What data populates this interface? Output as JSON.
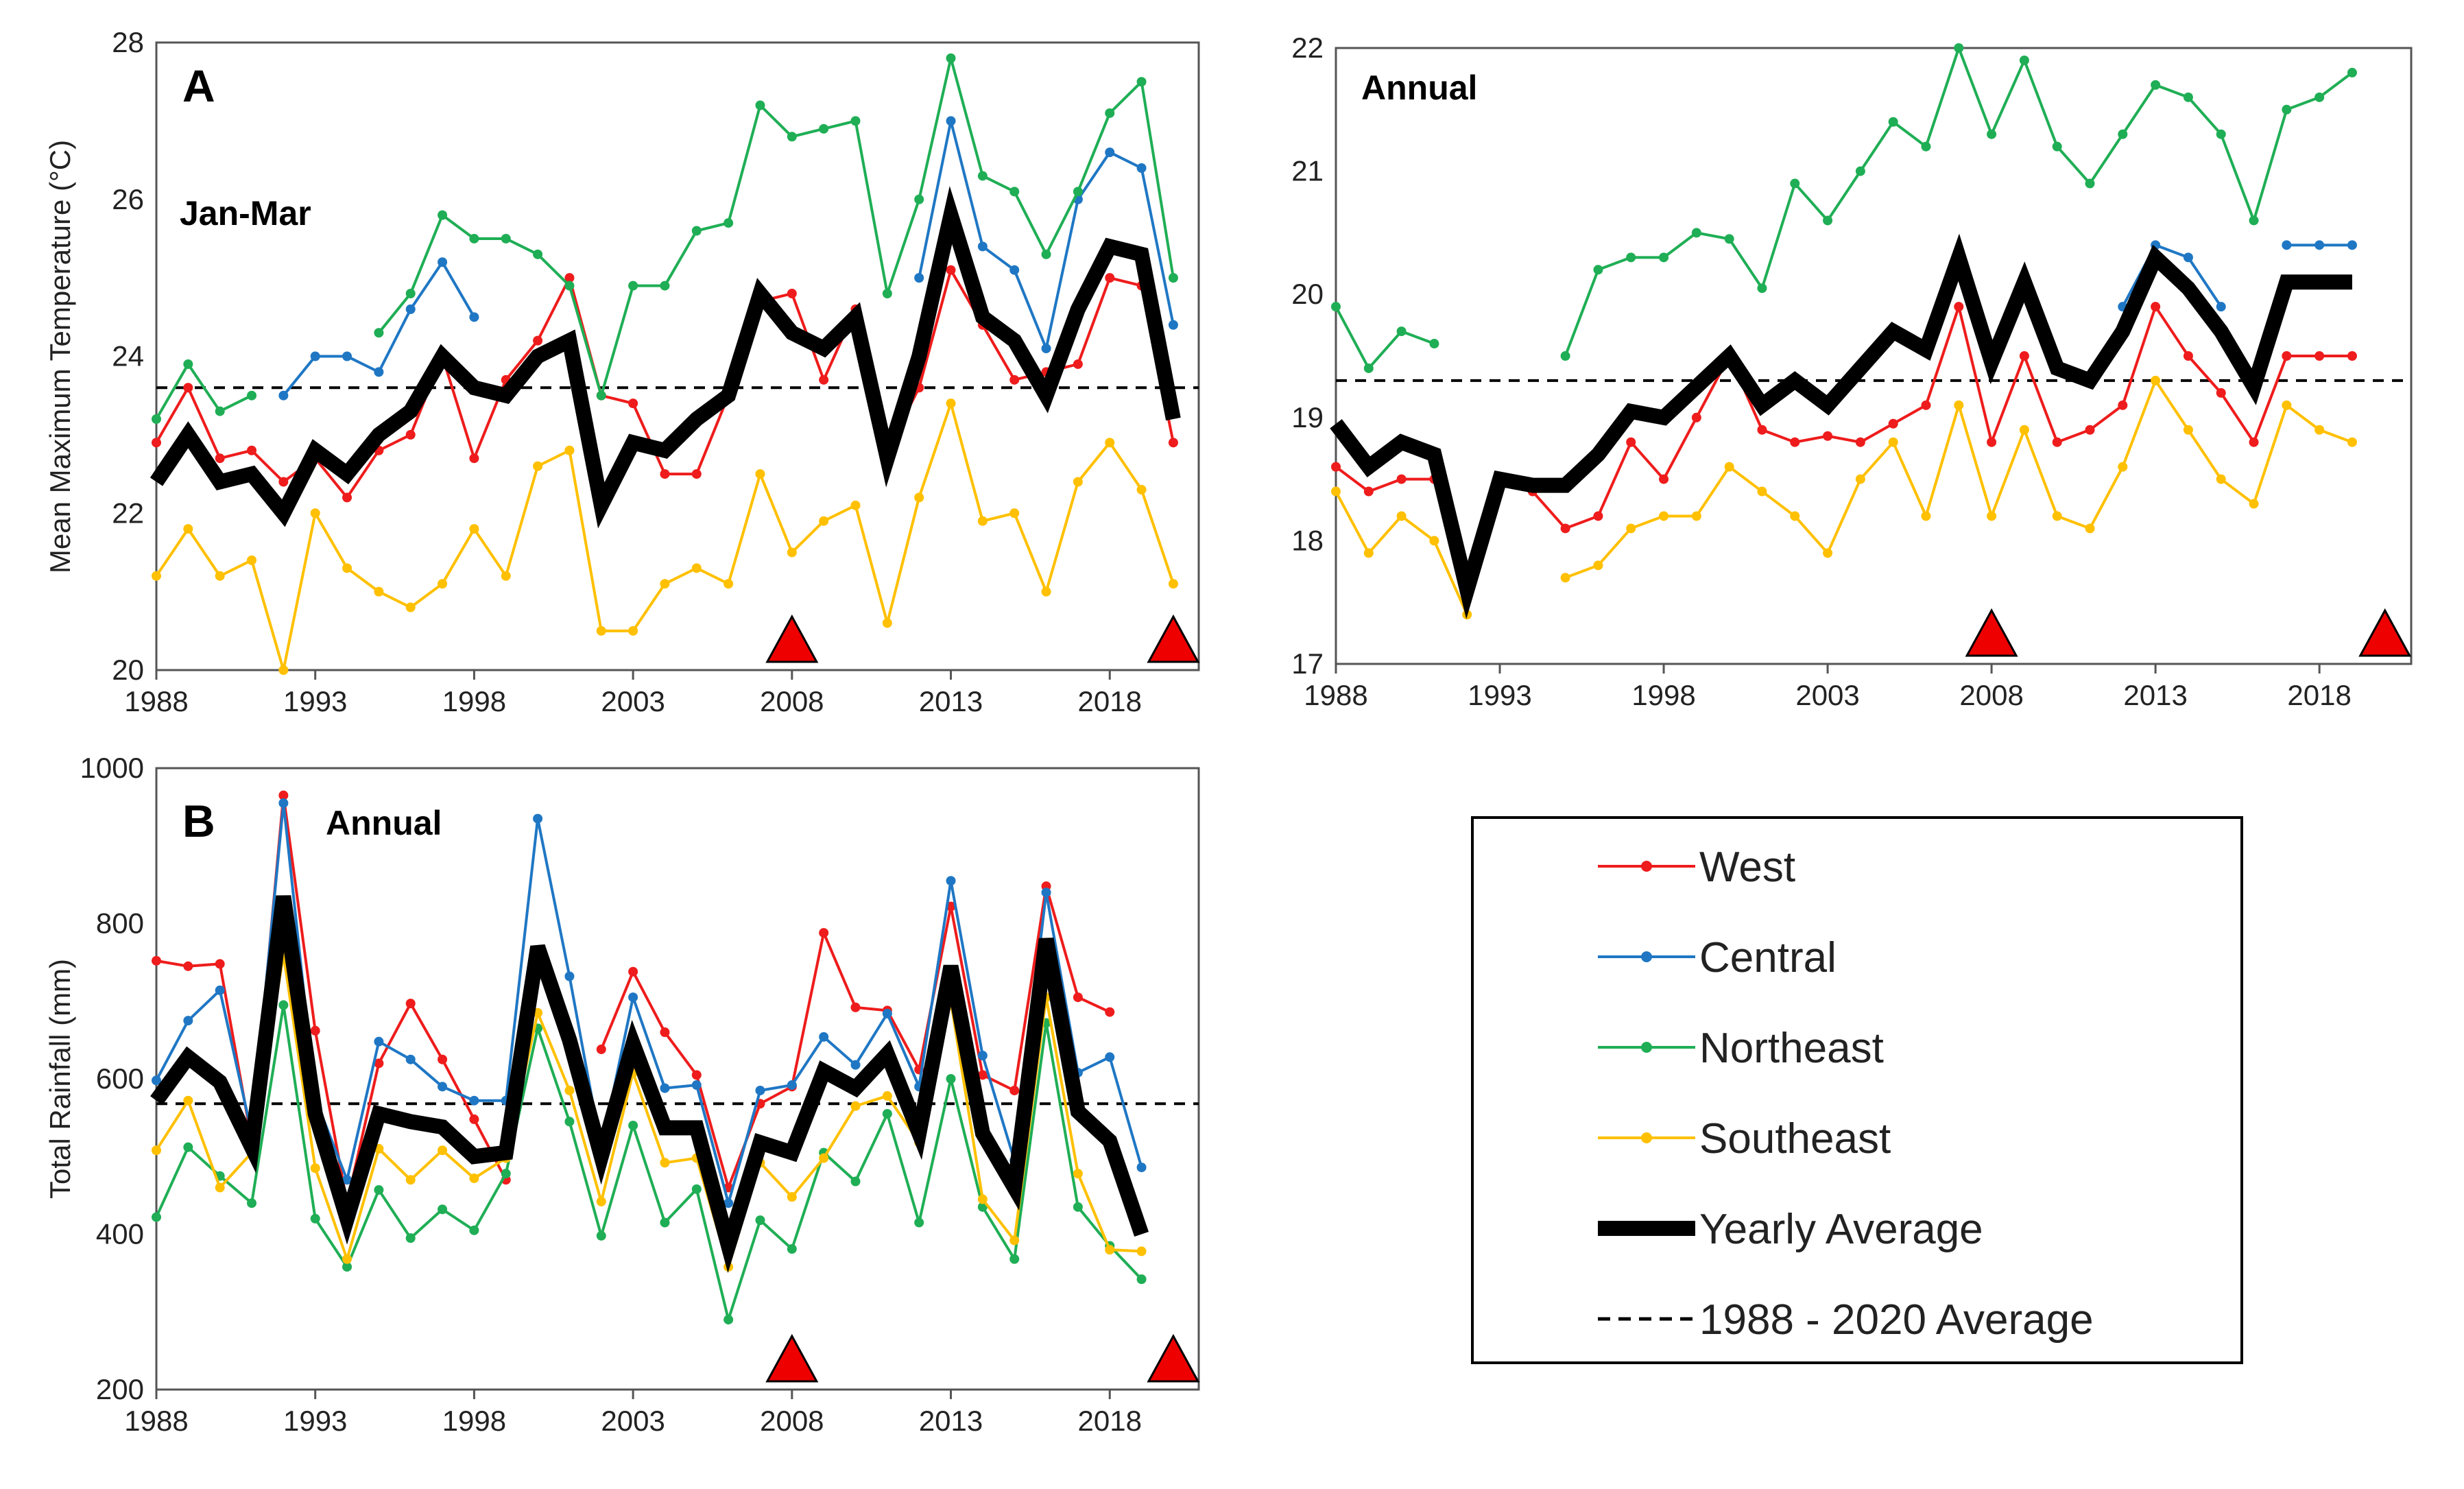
{
  "colors": {
    "West": "#ee1c1c",
    "Central": "#1f77c4",
    "Northeast": "#1fae55",
    "Southeast": "#ffc000",
    "Yearly Average": "#000000",
    "triangle": "#ee0000"
  },
  "legend": {
    "entries": [
      "West",
      "Central",
      "Northeast",
      "Southeast",
      "Yearly Average",
      "1988 - 2020 Average"
    ]
  },
  "chart_data": [
    {
      "id": "A-left",
      "type": "line",
      "panel_label": "A",
      "subtitle": "Jan-Mar",
      "ylabel": "Mean Maximum Temperature (°C)",
      "ylim": [
        20,
        28
      ],
      "yticks": [
        20,
        22,
        24,
        26,
        28
      ],
      "xlim": [
        1988,
        2020.8
      ],
      "xticks": [
        1988,
        1993,
        1998,
        2003,
        2008,
        2013,
        2018
      ],
      "reference_line": 23.6,
      "triangles": [
        2008,
        2020
      ],
      "series": [
        {
          "name": "West",
          "x": [
            1988,
            1989,
            1990,
            1991,
            1992,
            1993,
            1994,
            1995,
            1996,
            1997,
            1998,
            1999,
            2000,
            2001,
            2002,
            2003,
            2004,
            2005,
            2006,
            2007,
            2008,
            2009,
            2010,
            2011,
            2012,
            2013,
            2014,
            2015,
            2016,
            2017,
            2018,
            2019,
            2020
          ],
          "values": [
            22.9,
            23.6,
            22.7,
            22.8,
            22.4,
            22.7,
            22.2,
            22.8,
            23.0,
            24.0,
            22.7,
            23.7,
            24.2,
            25.0,
            23.5,
            23.4,
            22.5,
            22.5,
            23.5,
            24.7,
            24.8,
            23.7,
            24.6,
            22.8,
            23.6,
            25.1,
            24.4,
            23.7,
            23.8,
            23.9,
            25.0,
            24.9,
            22.9
          ]
        },
        {
          "name": "Central",
          "x": [
            1992,
            1993,
            1994,
            1995,
            1996,
            1997,
            1998,
            null,
            2012,
            2013,
            2014,
            2015,
            2016,
            2017,
            2018,
            2019,
            2020
          ],
          "values": [
            23.5,
            24.0,
            24.0,
            23.8,
            24.6,
            25.2,
            24.5,
            null,
            25.0,
            27.0,
            25.4,
            25.1,
            24.1,
            26.0,
            26.6,
            26.4,
            24.4
          ]
        },
        {
          "name": "Northeast",
          "x": [
            1988,
            1989,
            1990,
            1991,
            null,
            1995,
            1996,
            1997,
            1998,
            1999,
            2000,
            2001,
            2002,
            2003,
            2004,
            2005,
            2006,
            2007,
            2008,
            2009,
            2010,
            2011,
            2012,
            2013,
            2014,
            2015,
            2016,
            2017,
            2018,
            2019,
            2020
          ],
          "values": [
            23.2,
            23.9,
            23.3,
            23.5,
            null,
            24.3,
            24.8,
            25.8,
            25.5,
            25.5,
            25.3,
            24.9,
            23.5,
            24.9,
            24.9,
            25.6,
            25.7,
            27.2,
            26.8,
            26.9,
            27.0,
            24.8,
            26.0,
            27.8,
            26.3,
            26.1,
            25.3,
            26.1,
            27.1,
            27.5,
            25.0
          ]
        },
        {
          "name": "Southeast",
          "x": [
            1988,
            1989,
            1990,
            1991,
            1992,
            1993,
            1994,
            1995,
            1996,
            1997,
            1998,
            1999,
            2000,
            2001,
            2002,
            2003,
            2004,
            2005,
            2006,
            2007,
            2008,
            2009,
            2010,
            2011,
            2012,
            2013,
            2014,
            2015,
            2016,
            2017,
            2018,
            2019,
            2020
          ],
          "values": [
            21.2,
            21.8,
            21.2,
            21.4,
            20.0,
            22.0,
            21.3,
            21.0,
            20.8,
            21.1,
            21.8,
            21.2,
            22.6,
            22.8,
            20.5,
            20.5,
            21.1,
            21.3,
            21.1,
            22.5,
            21.5,
            21.9,
            22.1,
            20.6,
            22.2,
            23.4,
            21.9,
            22.0,
            21.0,
            22.4,
            22.9,
            22.3,
            21.1
          ]
        },
        {
          "name": "Yearly Average",
          "x": [
            1988,
            1989,
            1990,
            1991,
            1992,
            1993,
            1994,
            1995,
            1996,
            1997,
            1998,
            1999,
            2000,
            2001,
            2002,
            2003,
            2004,
            2005,
            2006,
            2007,
            2008,
            2009,
            2010,
            2011,
            2012,
            2013,
            2014,
            2015,
            2016,
            2017,
            2018,
            2019,
            2020
          ],
          "values": [
            22.4,
            23.0,
            22.4,
            22.5,
            22.0,
            22.8,
            22.5,
            23.0,
            23.3,
            24.0,
            23.6,
            23.5,
            24.0,
            24.2,
            22.1,
            22.9,
            22.8,
            23.2,
            23.5,
            24.8,
            24.3,
            24.1,
            24.5,
            22.7,
            24.0,
            25.8,
            24.5,
            24.2,
            23.5,
            24.6,
            25.4,
            25.3,
            23.2
          ]
        }
      ]
    },
    {
      "id": "A-right",
      "type": "line",
      "subtitle": "Annual",
      "ylabel": "",
      "ylim": [
        17,
        22
      ],
      "yticks": [
        17,
        18,
        19,
        20,
        21,
        22
      ],
      "xlim": [
        1988,
        2020.8
      ],
      "xticks": [
        1988,
        1993,
        1998,
        2003,
        2008,
        2013,
        2018
      ],
      "reference_line": 19.3,
      "triangles": [
        2008,
        2020
      ],
      "series": [
        {
          "name": "West",
          "x": [
            1988,
            1989,
            1990,
            1991,
            null,
            1994,
            1995,
            1996,
            1997,
            1998,
            1999,
            2000,
            2001,
            2002,
            2003,
            2004,
            2005,
            2006,
            2007,
            2008,
            2009,
            2010,
            2011,
            2012,
            2013,
            2014,
            2015,
            2016,
            2017,
            2018,
            2019
          ],
          "values": [
            18.6,
            18.4,
            18.5,
            18.5,
            null,
            18.4,
            18.1,
            18.2,
            18.8,
            18.5,
            19.0,
            19.5,
            18.9,
            18.8,
            18.85,
            18.8,
            18.95,
            19.1,
            19.9,
            18.8,
            19.5,
            18.8,
            18.9,
            19.1,
            19.9,
            19.5,
            19.2,
            18.8,
            19.5,
            19.5,
            19.5
          ]
        },
        {
          "name": "Central",
          "x": [
            2012,
            2013,
            2014,
            2015,
            null,
            2017,
            2018,
            2019
          ],
          "values": [
            19.9,
            20.4,
            20.3,
            19.9,
            null,
            20.4,
            20.4,
            20.4
          ]
        },
        {
          "name": "Northeast",
          "x": [
            1988,
            1989,
            1990,
            1991,
            null,
            1995,
            1996,
            1997,
            1998,
            1999,
            2000,
            2001,
            2002,
            2003,
            2004,
            2005,
            2006,
            2007,
            2008,
            2009,
            2010,
            2011,
            2012,
            2013,
            2014,
            2015,
            2016,
            2017,
            2018,
            2019
          ],
          "values": [
            19.9,
            19.4,
            19.7,
            19.6,
            null,
            19.5,
            20.2,
            20.3,
            20.3,
            20.5,
            20.45,
            20.05,
            20.9,
            20.6,
            21.0,
            21.4,
            21.2,
            22.0,
            21.3,
            21.9,
            21.2,
            20.9,
            21.3,
            21.7,
            21.6,
            21.3,
            20.6,
            21.5,
            21.6,
            21.8
          ]
        },
        {
          "name": "Southeast",
          "x": [
            1988,
            1989,
            1990,
            1991,
            1992,
            null,
            1995,
            1996,
            1997,
            1998,
            1999,
            2000,
            2001,
            2002,
            2003,
            2004,
            2005,
            2006,
            2007,
            2008,
            2009,
            2010,
            2011,
            2012,
            2013,
            2014,
            2015,
            2016,
            2017,
            2018,
            2019
          ],
          "values": [
            18.4,
            17.9,
            18.2,
            18.0,
            17.4,
            null,
            17.7,
            17.8,
            18.1,
            18.2,
            18.2,
            18.6,
            18.4,
            18.2,
            17.9,
            18.5,
            18.8,
            18.2,
            19.1,
            18.2,
            18.9,
            18.2,
            18.1,
            18.6,
            19.3,
            18.9,
            18.5,
            18.3,
            19.1,
            18.9,
            18.8
          ]
        },
        {
          "name": "Yearly Average",
          "x": [
            1988,
            1989,
            1990,
            1991,
            1992,
            1993,
            1994,
            1995,
            1996,
            1997,
            1998,
            1999,
            2000,
            2001,
            2002,
            2003,
            2004,
            2005,
            2006,
            2007,
            2008,
            2009,
            2010,
            2011,
            2012,
            2013,
            2014,
            2015,
            2016,
            2017,
            2018,
            2019
          ],
          "values": [
            18.95,
            18.6,
            18.8,
            18.7,
            17.6,
            18.5,
            18.45,
            18.45,
            18.7,
            19.05,
            19.0,
            19.25,
            19.5,
            19.1,
            19.3,
            19.1,
            19.4,
            19.7,
            19.55,
            20.3,
            19.45,
            20.1,
            19.4,
            19.3,
            19.7,
            20.3,
            20.05,
            19.7,
            19.25,
            20.1,
            20.1,
            20.1
          ]
        }
      ]
    },
    {
      "id": "B",
      "type": "line",
      "panel_label": "B",
      "subtitle": "Annual",
      "ylabel": "Total Rainfall (mm)",
      "ylim": [
        200,
        1000
      ],
      "yticks": [
        200,
        400,
        600,
        800,
        1000
      ],
      "xlim": [
        1988,
        2020.8
      ],
      "xticks": [
        1988,
        1993,
        1998,
        2003,
        2008,
        2013,
        2018
      ],
      "reference_line": 568,
      "triangles": [
        2008,
        2020
      ],
      "series": [
        {
          "name": "West",
          "x": [
            1988,
            1989,
            1990,
            1991,
            1992,
            1993,
            1994,
            1995,
            1996,
            1997,
            1998,
            1999,
            null,
            2002,
            2003,
            2004,
            2005,
            2006,
            2007,
            2008,
            2009,
            2010,
            2011,
            2012,
            2013,
            2014,
            2015,
            2016,
            2017,
            2018
          ],
          "values": [
            752,
            745,
            748,
            520,
            965,
            662,
            440,
            620,
            697,
            625,
            548,
            470,
            null,
            638,
            738,
            660,
            605,
            460,
            568,
            590,
            788,
            692,
            688,
            612,
            822,
            605,
            585,
            848,
            705,
            686
          ]
        },
        {
          "name": "Central",
          "x": [
            1988,
            1989,
            1990,
            1991,
            1992,
            1993,
            1994,
            1995,
            1996,
            1997,
            1998,
            1999,
            2000,
            2001,
            2002,
            2003,
            2004,
            2005,
            2006,
            2007,
            2008,
            2009,
            2010,
            2011,
            2012,
            2013,
            2014,
            2015,
            2016,
            2017,
            2018,
            2019
          ],
          "values": [
            598,
            675,
            714,
            530,
            955,
            575,
            470,
            648,
            625,
            590,
            572,
            572,
            935,
            732,
            510,
            705,
            588,
            592,
            440,
            585,
            592,
            654,
            618,
            684,
            590,
            855,
            630,
            495,
            840,
            608,
            628,
            486
          ]
        },
        {
          "name": "Northeast",
          "x": [
            1988,
            1989,
            1990,
            1991,
            1992,
            1993,
            1994,
            1995,
            1996,
            1997,
            1998,
            1999,
            2000,
            2001,
            2002,
            2003,
            2004,
            2005,
            2006,
            2007,
            2008,
            2009,
            2010,
            2011,
            2012,
            2013,
            2014,
            2015,
            2016,
            2017,
            2018,
            2019
          ],
          "values": [
            422,
            512,
            475,
            440,
            695,
            420,
            358,
            457,
            395,
            432,
            405,
            478,
            665,
            545,
            398,
            540,
            415,
            458,
            290,
            418,
            381,
            505,
            468,
            555,
            415,
            600,
            435,
            368,
            672,
            435,
            385,
            342
          ]
        },
        {
          "name": "Southeast",
          "x": [
            1988,
            1989,
            1990,
            1991,
            1992,
            1993,
            1994,
            1995,
            1996,
            1997,
            1998,
            1999,
            2000,
            2001,
            2002,
            2003,
            2004,
            2005,
            2006,
            2007,
            2008,
            2009,
            2010,
            2011,
            2012,
            2013,
            2014,
            2015,
            2016,
            2017,
            2018,
            2019
          ],
          "values": [
            508,
            572,
            460,
            505,
            760,
            485,
            368,
            510,
            470,
            508,
            472,
            498,
            685,
            585,
            442,
            608,
            492,
            498,
            358,
            492,
            448,
            498,
            565,
            578,
            518,
            700,
            445,
            392,
            705,
            478,
            380,
            378
          ]
        },
        {
          "name": "Yearly Average",
          "x": [
            1988,
            1989,
            1990,
            1991,
            1992,
            1993,
            1994,
            1995,
            1996,
            1997,
            1998,
            1999,
            2000,
            2001,
            2002,
            2003,
            2004,
            2005,
            2006,
            2007,
            2008,
            2009,
            2010,
            2011,
            2012,
            2013,
            2014,
            2015,
            2016,
            2017,
            2018,
            2019
          ],
          "values": [
            572,
            628,
            596,
            512,
            835,
            555,
            420,
            555,
            545,
            538,
            500,
            505,
            770,
            650,
            500,
            645,
            537,
            537,
            385,
            518,
            505,
            610,
            588,
            632,
            530,
            745,
            530,
            460,
            780,
            558,
            520,
            400
          ]
        }
      ]
    }
  ]
}
